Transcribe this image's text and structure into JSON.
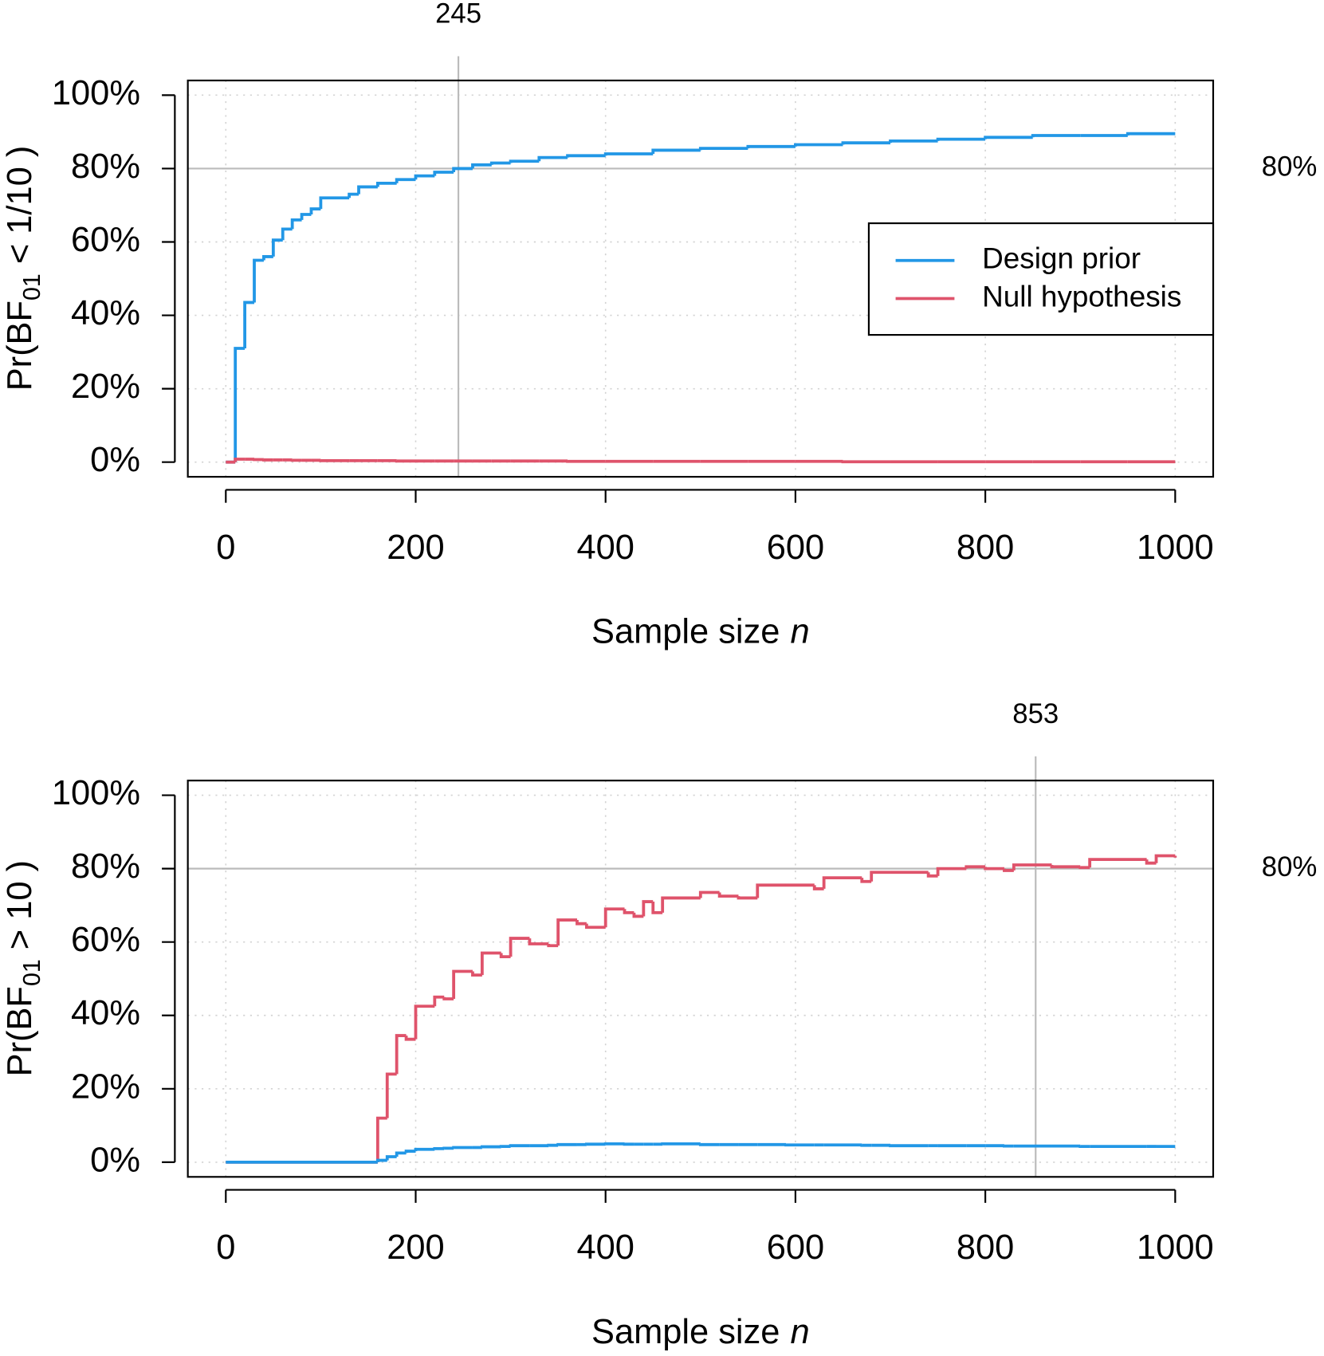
{
  "chart_data": [
    {
      "type": "line",
      "drawstyle": "steps-post",
      "ylabel": {
        "main": "Pr(BF",
        "sub": "01",
        "rest": " < 1/10 )"
      },
      "xlabel": {
        "text": "Sample size",
        "var": "n"
      },
      "x": [
        0,
        10,
        20,
        30,
        40,
        50,
        60,
        70,
        80,
        90,
        100,
        130,
        140,
        160,
        180,
        200,
        220,
        240,
        260,
        280,
        300,
        330,
        360,
        400,
        450,
        500,
        550,
        600,
        650,
        700,
        750,
        800,
        850,
        900,
        950,
        1000
      ],
      "series": [
        {
          "name": "Design prior",
          "color": "#2297E6",
          "values": [
            0,
            31,
            43.5,
            55,
            56,
            60.5,
            63.5,
            66,
            67.5,
            69,
            72,
            73,
            75,
            76,
            77,
            78,
            79,
            80,
            81,
            81.5,
            82,
            83,
            83.5,
            84,
            85,
            85.5,
            86,
            86.5,
            87,
            87.5,
            88,
            88.5,
            89,
            89,
            89.5,
            89.5
          ]
        },
        {
          "name": "Null hypothesis",
          "color": "#DF536B",
          "values": [
            0,
            0.8,
            0.8,
            0.7,
            0.6,
            0.6,
            0.6,
            0.5,
            0.5,
            0.5,
            0.4,
            0.4,
            0.4,
            0.4,
            0.3,
            0.3,
            0.3,
            0.3,
            0.3,
            0.3,
            0.3,
            0.3,
            0.2,
            0.2,
            0.2,
            0.2,
            0.2,
            0.2,
            0.1,
            0.1,
            0.1,
            0.1,
            0.1,
            0.1,
            0.1,
            0.1
          ]
        }
      ],
      "xlim": [
        -40,
        1040
      ],
      "ylim": [
        -4,
        104
      ],
      "xticks": [
        0,
        200,
        400,
        600,
        800,
        1000
      ],
      "yticks": [
        {
          "value": 0,
          "label": "0%"
        },
        {
          "value": 20,
          "label": "20%"
        },
        {
          "value": 40,
          "label": "40%"
        },
        {
          "value": 60,
          "label": "60%"
        },
        {
          "value": 80,
          "label": "80%"
        },
        {
          "value": 100,
          "label": "100%"
        }
      ],
      "grid": true,
      "vline": 245,
      "hline": {
        "value": 80,
        "label": "80%"
      },
      "legend": "center right"
    },
    {
      "type": "line",
      "drawstyle": "steps-post",
      "ylabel": {
        "main": "Pr(BF",
        "sub": "01",
        "rest": " > 10 )"
      },
      "xlabel": {
        "text": "Sample size",
        "var": "n"
      },
      "x": [
        0,
        160,
        170,
        180,
        190,
        200,
        220,
        230,
        240,
        260,
        270,
        290,
        300,
        320,
        340,
        350,
        370,
        380,
        400,
        420,
        430,
        440,
        450,
        460,
        500,
        520,
        540,
        560,
        590,
        620,
        630,
        670,
        680,
        700,
        740,
        750,
        780,
        800,
        820,
        830,
        870,
        900,
        910,
        970,
        980,
        1000
      ],
      "series": [
        {
          "color": "#DF536B",
          "values": [
            0,
            12,
            24,
            34.5,
            33.5,
            42.5,
            45,
            44.5,
            52,
            51,
            57,
            56,
            61,
            59.5,
            59,
            66,
            65,
            64,
            69,
            68,
            67,
            71,
            68,
            72,
            73.5,
            72.5,
            72,
            75.5,
            75.5,
            74.5,
            77.5,
            76.5,
            79,
            79,
            78,
            80,
            80.5,
            80,
            79.5,
            81,
            80.5,
            80.3,
            82.5,
            81.5,
            83.5,
            83
          ]
        },
        {
          "color": "#2297E6",
          "values": [
            0,
            0.5,
            1.5,
            2.5,
            3,
            3.5,
            3.7,
            3.8,
            4,
            4,
            4.2,
            4.3,
            4.5,
            4.5,
            4.6,
            4.8,
            4.8,
            4.9,
            5,
            4.9,
            4.9,
            4.9,
            4.9,
            5,
            4.8,
            4.8,
            4.8,
            4.8,
            4.7,
            4.7,
            4.7,
            4.6,
            4.6,
            4.5,
            4.5,
            4.5,
            4.5,
            4.5,
            4.4,
            4.4,
            4.4,
            4.3,
            4.3,
            4.3,
            4.3,
            4.3
          ]
        }
      ],
      "xlim": [
        -40,
        1040
      ],
      "ylim": [
        -4,
        104
      ],
      "xticks": [
        0,
        200,
        400,
        600,
        800,
        1000
      ],
      "yticks": [
        {
          "value": 0,
          "label": "0%"
        },
        {
          "value": 20,
          "label": "20%"
        },
        {
          "value": 40,
          "label": "40%"
        },
        {
          "value": 60,
          "label": "60%"
        },
        {
          "value": 80,
          "label": "80%"
        },
        {
          "value": 100,
          "label": "100%"
        }
      ],
      "grid": true,
      "vline": 853,
      "hline": {
        "value": 80,
        "label": "80%"
      }
    }
  ]
}
